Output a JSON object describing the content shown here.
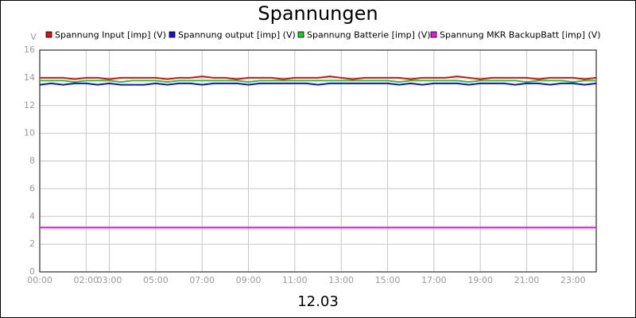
{
  "chart_data": {
    "type": "line",
    "title": "Spannungen",
    "y_label": "V",
    "x_label": "12.03",
    "x": [
      0,
      0.5,
      1,
      1.5,
      2,
      2.5,
      3,
      3.5,
      4,
      4.5,
      5,
      5.5,
      6,
      6.5,
      7,
      7.5,
      8,
      8.5,
      9,
      9.5,
      10,
      10.5,
      11,
      11.5,
      12,
      12.5,
      13,
      13.5,
      14,
      14.5,
      15,
      15.5,
      16,
      16.5,
      17,
      17.5,
      18,
      18.5,
      19,
      19.5,
      20,
      20.5,
      21,
      21.5,
      22,
      22.5,
      23,
      23.5,
      24
    ],
    "series": [
      {
        "name": "Spannung Input [imp] (V)",
        "color": "#dd1111",
        "values": [
          14.0,
          14.0,
          14.0,
          13.9,
          14.0,
          14.0,
          13.9,
          14.0,
          14.0,
          14.0,
          14.0,
          13.9,
          14.0,
          14.0,
          14.1,
          14.0,
          14.0,
          13.9,
          14.0,
          14.0,
          14.0,
          13.9,
          14.0,
          14.0,
          14.0,
          14.1,
          14.0,
          13.9,
          14.0,
          14.0,
          14.0,
          14.0,
          13.9,
          14.0,
          14.0,
          14.0,
          14.1,
          14.0,
          13.9,
          14.0,
          14.0,
          14.0,
          14.0,
          13.9,
          14.0,
          14.0,
          14.0,
          13.9,
          14.0
        ]
      },
      {
        "name": "Spannung output [imp] (V)",
        "color": "#1111dd",
        "values": [
          13.5,
          13.6,
          13.5,
          13.6,
          13.6,
          13.5,
          13.6,
          13.5,
          13.5,
          13.5,
          13.6,
          13.5,
          13.6,
          13.6,
          13.5,
          13.6,
          13.6,
          13.6,
          13.5,
          13.6,
          13.6,
          13.6,
          13.6,
          13.6,
          13.5,
          13.6,
          13.6,
          13.6,
          13.6,
          13.6,
          13.6,
          13.5,
          13.6,
          13.5,
          13.6,
          13.6,
          13.6,
          13.5,
          13.6,
          13.6,
          13.6,
          13.5,
          13.6,
          13.6,
          13.5,
          13.6,
          13.6,
          13.5,
          13.6
        ]
      },
      {
        "name": "Spannung Batterie [imp] (V)",
        "color": "#22cc22",
        "values": [
          13.8,
          13.8,
          13.8,
          13.7,
          13.8,
          13.8,
          13.8,
          13.7,
          13.8,
          13.8,
          13.8,
          13.7,
          13.8,
          13.8,
          13.8,
          13.8,
          13.8,
          13.8,
          13.7,
          13.8,
          13.8,
          13.8,
          13.8,
          13.8,
          13.8,
          13.8,
          13.8,
          13.8,
          13.8,
          13.8,
          13.8,
          13.7,
          13.8,
          13.8,
          13.8,
          13.8,
          13.8,
          13.7,
          13.8,
          13.8,
          13.8,
          13.8,
          13.7,
          13.8,
          13.8,
          13.8,
          13.7,
          13.8,
          13.8
        ]
      },
      {
        "name": "Spannung MKR BackupBatt [imp] (V)",
        "color": "#ee11ee",
        "values": [
          3.2,
          3.2,
          3.2,
          3.2,
          3.2,
          3.2,
          3.2,
          3.2,
          3.2,
          3.2,
          3.2,
          3.2,
          3.2,
          3.2,
          3.2,
          3.2,
          3.2,
          3.2,
          3.2,
          3.2,
          3.2,
          3.2,
          3.2,
          3.2,
          3.2,
          3.2,
          3.2,
          3.2,
          3.2,
          3.2,
          3.2,
          3.2,
          3.2,
          3.2,
          3.2,
          3.2,
          3.2,
          3.2,
          3.2,
          3.2,
          3.2,
          3.2,
          3.2,
          3.2,
          3.2,
          3.2,
          3.2,
          3.2,
          3.2
        ]
      }
    ],
    "xlim": [
      0,
      24
    ],
    "xticks": [
      {
        "value": 0,
        "label": "00:00"
      },
      {
        "value": 2,
        "label": "02:00"
      },
      {
        "value": 3,
        "label": "03:00"
      },
      {
        "value": 5,
        "label": "05:00"
      },
      {
        "value": 7,
        "label": "07:00"
      },
      {
        "value": 9,
        "label": "09:00"
      },
      {
        "value": 11,
        "label": "11:00"
      },
      {
        "value": 13,
        "label": "13:00"
      },
      {
        "value": 15,
        "label": "15:00"
      },
      {
        "value": 17,
        "label": "17:00"
      },
      {
        "value": 19,
        "label": "19:00"
      },
      {
        "value": 21,
        "label": "21:00"
      },
      {
        "value": 23,
        "label": "23:00"
      }
    ],
    "ylim": [
      0,
      16
    ],
    "yticks": [
      0,
      2,
      4,
      6,
      8,
      10,
      12,
      14,
      16
    ],
    "grid": true
  }
}
